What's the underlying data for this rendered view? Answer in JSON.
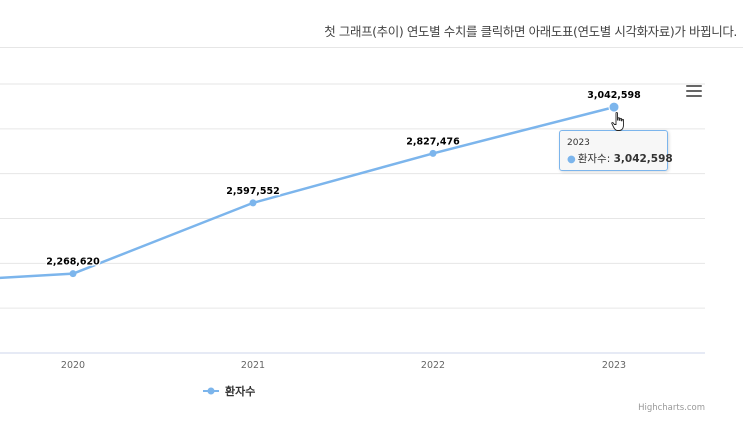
{
  "notice_text": "첫 그래프(추이) 연도별 수치를 클릭하면 아래도표(연도별 시각화자료)가 바뀝니다.",
  "menu_icon": "hamburger-menu-icon",
  "colors": {
    "series": "#7cb5ec",
    "grid": "#e6e6e6",
    "axis": "#ccd6eb",
    "label": "#333333",
    "tick": "#666666"
  },
  "tooltip": {
    "x_label": "2023",
    "series_label": "환자수: ",
    "value_label": "3,042,598"
  },
  "legend": {
    "label": "환자수"
  },
  "credits": "Highcharts.com",
  "chart_data": {
    "type": "line",
    "categories": [
      "2020",
      "2021",
      "2022",
      "2023"
    ],
    "series": [
      {
        "name": "환자수",
        "values": [
          2268620,
          2597552,
          2827476,
          3042598
        ]
      }
    ],
    "data_labels": [
      "2,268,620",
      "2,597,552",
      "2,827,476",
      "3,042,598"
    ],
    "previous_point_value": 2220000,
    "ylim": [
      1900000,
      3150000
    ],
    "grid": true,
    "legend_position": "bottom-left",
    "highlighted_category": "2023"
  }
}
